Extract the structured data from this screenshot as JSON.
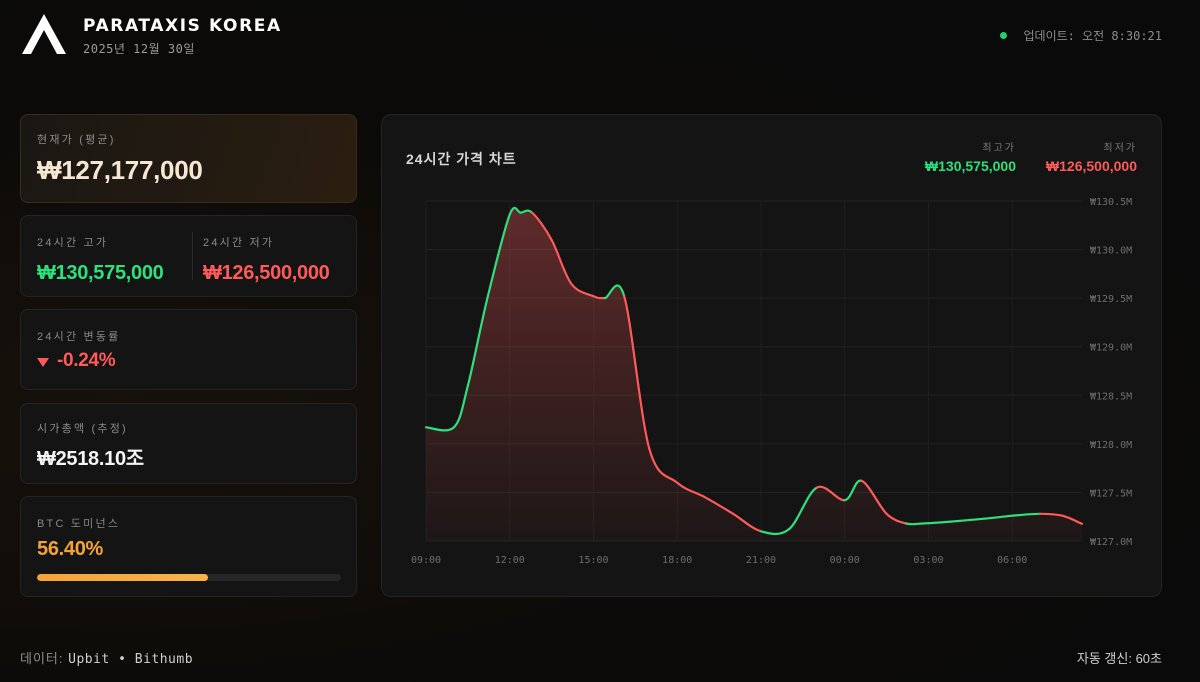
{
  "header": {
    "brand": "PARATAXIS KOREA",
    "date": "2025년 12월 30일",
    "update_label": "업데이트: 오전 8:30:21"
  },
  "cards": {
    "current": {
      "label": "현재가 (평균)",
      "value": "₩127,177,000"
    },
    "high": {
      "label": "24시간 고가",
      "value": "₩130,575,000"
    },
    "low": {
      "label": "24시간 저가",
      "value": "₩126,500,000"
    },
    "change": {
      "label": "24시간 변동률",
      "value": "-0.24%"
    },
    "mcap": {
      "label": "시가총액 (추정)",
      "value": "₩2518.10조"
    },
    "dominance": {
      "label": "BTC 도미넌스",
      "value": "56.40%",
      "fraction": 0.564
    }
  },
  "chart_panel": {
    "title": "24시간 가격 차트",
    "high_label": "최고가",
    "high_value": "₩130,575,000",
    "low_label": "최저가",
    "low_value": "₩126,500,000"
  },
  "chart_data": {
    "type": "line",
    "xlabel": "",
    "ylabel": "",
    "ylim": [
      127.0,
      130.5
    ],
    "y_ticks": [
      "₩130.5M",
      "₩130.0M",
      "₩129.5M",
      "₩129.0M",
      "₩128.5M",
      "₩128.0M",
      "₩127.5M",
      "₩127.0M"
    ],
    "x_ticks": [
      "09:00",
      "12:00",
      "15:00",
      "18:00",
      "21:00",
      "00:00",
      "03:00",
      "06:00"
    ],
    "x_tick_hours": [
      0,
      3,
      6,
      9,
      12,
      15,
      18,
      21
    ],
    "x_range_hours": [
      0,
      23.5
    ],
    "series": [
      {
        "hours": [
          0,
          1,
          1.5,
          2.2,
          3.0,
          3.4,
          3.8,
          4.5,
          5.2,
          6.0,
          6.4,
          7.1,
          8.0,
          9.0,
          10.0,
          11.0,
          12.0,
          13.0,
          14.0,
          15.0,
          15.6,
          16.5,
          17.2,
          17.8,
          18.8,
          20.0,
          21.0,
          22.0,
          22.8,
          23.5
        ],
        "values": [
          128.17,
          128.17,
          128.6,
          129.5,
          130.36,
          130.38,
          130.38,
          130.1,
          129.65,
          129.52,
          129.5,
          129.52,
          127.95,
          127.6,
          127.45,
          127.28,
          127.1,
          127.12,
          127.55,
          127.42,
          127.62,
          127.28,
          127.18,
          127.18,
          127.2,
          127.23,
          127.26,
          127.28,
          127.26,
          127.177
        ]
      }
    ],
    "colors": {
      "up": "#2ee07c",
      "down": "#ff5a5a"
    }
  },
  "footer": {
    "source_label": "데이터:",
    "sources": "Upbit • Bithumb",
    "refresh": "자동 갱신: 60초"
  }
}
